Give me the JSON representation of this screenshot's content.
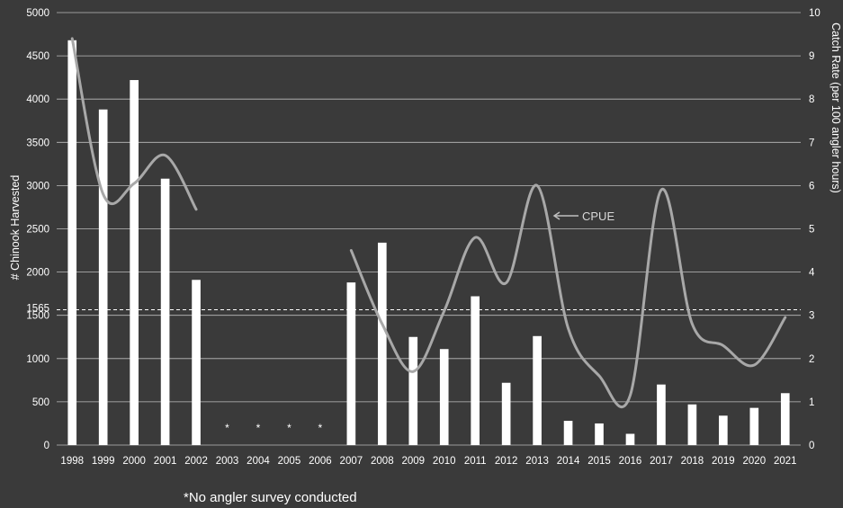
{
  "chart_data": {
    "type": "bar",
    "categories": [
      "1998",
      "1999",
      "2000",
      "2001",
      "2002",
      "2003",
      "2004",
      "2005",
      "2006",
      "2007",
      "2008",
      "2009",
      "2010",
      "2011",
      "2012",
      "2013",
      "2014",
      "2015",
      "2016",
      "2017",
      "2018",
      "2019",
      "2020",
      "2021"
    ],
    "series": [
      {
        "type": "bar",
        "axis": "left",
        "values": [
          4680,
          3880,
          4220,
          3080,
          1910,
          null,
          null,
          null,
          null,
          1880,
          2340,
          1250,
          1110,
          1720,
          720,
          1260,
          280,
          250,
          130,
          700,
          470,
          340,
          430,
          600
        ]
      },
      {
        "name": "CPUE",
        "type": "line",
        "axis": "right",
        "values": [
          9.4,
          5.8,
          6.05,
          6.7,
          5.45,
          null,
          null,
          null,
          null,
          4.5,
          2.8,
          1.7,
          3.1,
          4.8,
          3.75,
          6.0,
          2.7,
          1.6,
          1.15,
          5.9,
          2.8,
          2.3,
          1.85,
          2.95
        ]
      }
    ],
    "ylabel": "# Chinook Harvested",
    "y2label": "Catch Rate (per 100 angler hours)",
    "ylim": [
      0,
      5000
    ],
    "y2lim": [
      0,
      10
    ],
    "yticks": [
      "0",
      "500",
      "1000",
      "1500",
      "2000",
      "2500",
      "3000",
      "3500",
      "4000",
      "4500",
      "5000"
    ],
    "y2ticks": [
      "0",
      "1",
      "2",
      "3",
      "4",
      "5",
      "6",
      "7",
      "8",
      "9",
      "10"
    ],
    "grid": true,
    "reference_line": {
      "value": 1565,
      "label": "1565",
      "style": "dashed"
    },
    "annotation": {
      "text": "CPUE",
      "arrow": true
    },
    "missing_marker": "*",
    "footnote": "*No angler survey conducted"
  },
  "colors": {
    "background": "#3a3a3a",
    "bars": "#ffffff",
    "line": "#a8a8a8",
    "grid": "#bdbdbd",
    "text": "#ffffff"
  }
}
